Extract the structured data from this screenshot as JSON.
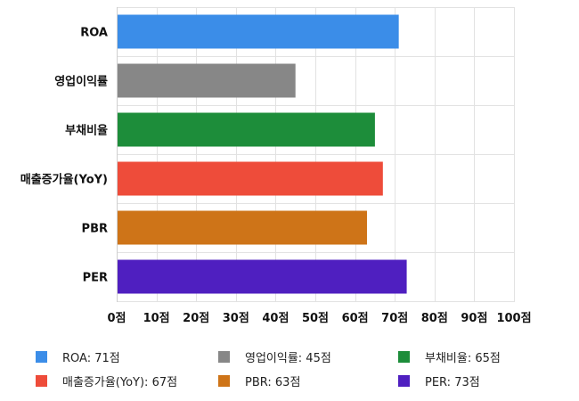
{
  "chart_data": {
    "type": "bar",
    "orientation": "horizontal",
    "categories": [
      "ROA",
      "영업이익률",
      "부채비율",
      "매출증가율(YoY)",
      "PBR",
      "PER"
    ],
    "values": [
      71,
      45,
      65,
      67,
      63,
      73
    ],
    "colors": [
      "#3b8de8",
      "#878787",
      "#1d8d3a",
      "#ee4c3a",
      "#ce7418",
      "#4f1fc0"
    ],
    "xlim": [
      0,
      100
    ],
    "xticks": [
      0,
      10,
      20,
      30,
      40,
      50,
      60,
      70,
      80,
      90,
      100
    ],
    "tick_labels": [
      "0점",
      "10점",
      "20점",
      "30점",
      "40점",
      "50점",
      "60점",
      "70점",
      "80점",
      "90점",
      "100점"
    ],
    "grid": true,
    "legend_position": "bottom",
    "legend": [
      {
        "label": "ROA: 71점",
        "color": "#3b8de8"
      },
      {
        "label": "영업이익률: 45점",
        "color": "#878787"
      },
      {
        "label": "부채비율: 65점",
        "color": "#1d8d3a"
      },
      {
        "label": "매출증가율(YoY): 67점",
        "color": "#ee4c3a"
      },
      {
        "label": "PBR: 63점",
        "color": "#ce7418"
      },
      {
        "label": "PER: 73점",
        "color": "#4f1fc0"
      }
    ]
  }
}
